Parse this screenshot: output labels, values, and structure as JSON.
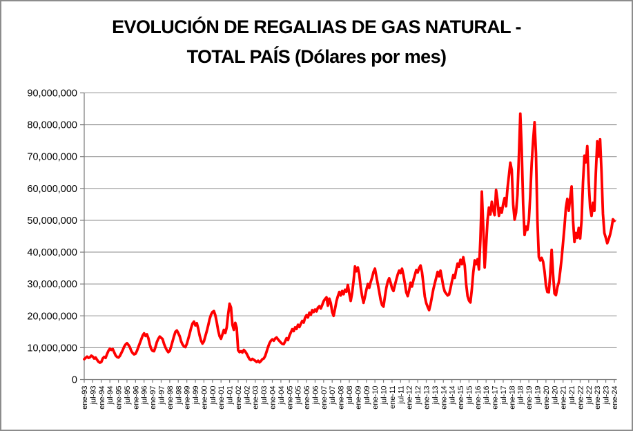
{
  "title": {
    "line1": "EVOLUCIÓN DE REGALIAS DE GAS NATURAL -",
    "line2": "TOTAL PAÍS (Dólares por mes)"
  },
  "colors": {
    "line": "#ff0000",
    "grid": "#8a8a8a",
    "axis": "#7a7a7a",
    "text": "#000000",
    "border": "#8c8c8c",
    "background": "#ffffff"
  },
  "chart_data": {
    "type": "line",
    "title": "EVOLUCIÓN DE REGALIAS DE GAS NATURAL - TOTAL PAÍS (Dólares por mes)",
    "xlabel": "",
    "ylabel": "",
    "legend": "none",
    "grid": "horizontal",
    "y_axis": {
      "min": 0,
      "max": 90000000,
      "step": 10000000
    },
    "y_tick_labels": [
      "0",
      "10,000,000",
      "20,000,000",
      "30,000,000",
      "40,000,000",
      "50,000,000",
      "60,000,000",
      "70,000,000",
      "80,000,000",
      "90,000,000"
    ],
    "x_tick_labels": [
      "ene-93",
      "jul-93",
      "ene-94",
      "jul-94",
      "ene-95",
      "jul-95",
      "ene-96",
      "jul-96",
      "ene-97",
      "jul-97",
      "ene-98",
      "jul-98",
      "ene-99",
      "jul-99",
      "ene-00",
      "jul-00",
      "ene-01",
      "jul-01",
      "ene-02",
      "jul-02",
      "ene-03",
      "jul-03",
      "ene-04",
      "jul-04",
      "ene-05",
      "jul-05",
      "ene-06",
      "jul-06",
      "ene-07",
      "jul-07",
      "ene-08",
      "jul-08",
      "ene-09",
      "jul-09",
      "ene-10",
      "jul-10",
      "ene-11",
      "jul-11",
      "ene-12",
      "jul-12",
      "ene-13",
      "jul-13",
      "ene-14",
      "jul-14",
      "ene-15",
      "jul-15",
      "ene-16",
      "jul-16",
      "ene-17",
      "jul-17",
      "ene-18",
      "jul-18",
      "ene-19",
      "jul-19",
      "ene-20",
      "jul-20",
      "ene-21",
      "jul-21",
      "ene-22",
      "jul-22",
      "ene-23",
      "jul-23",
      "ene-24"
    ],
    "x_start": "ene-93",
    "x_end": "ene-24",
    "n_points": 373,
    "values_unit": "millions of dollars per month (estimated from plot)",
    "values_millions": [
      6.4,
      6.8,
      7.2,
      6.8,
      7.0,
      7.5,
      7.2,
      6.6,
      6.9,
      6.2,
      5.6,
      5.3,
      5.5,
      6.6,
      7.1,
      6.8,
      8.0,
      9.0,
      9.7,
      9.3,
      9.6,
      8.6,
      7.6,
      7.1,
      6.9,
      7.4,
      8.3,
      9.2,
      10.3,
      11.0,
      11.4,
      10.9,
      10.2,
      9.0,
      8.3,
      7.9,
      8.1,
      9.0,
      10.2,
      11.4,
      12.6,
      13.8,
      14.5,
      13.7,
      14.2,
      13.0,
      11.0,
      9.6,
      9.0,
      8.9,
      10.2,
      11.8,
      12.8,
      13.5,
      13.1,
      12.7,
      11.2,
      10.1,
      9.2,
      8.6,
      9.0,
      10.4,
      12.0,
      13.6,
      15.0,
      15.4,
      14.6,
      13.6,
      12.0,
      11.0,
      10.4,
      10.2,
      11.2,
      12.8,
      14.4,
      16.2,
      17.6,
      18.2,
      17.0,
      17.7,
      16.0,
      13.8,
      12.2,
      11.3,
      12.0,
      13.6,
      15.2,
      17.0,
      19.0,
      20.4,
      21.2,
      21.5,
      20.2,
      18.0,
      15.4,
      13.6,
      12.8,
      14.2,
      15.6,
      14.6,
      16.4,
      20.5,
      23.8,
      22.6,
      17.2,
      15.6,
      17.8,
      16.2,
      9.2,
      8.6,
      8.9,
      8.5,
      9.3,
      8.8,
      8.1,
      7.2,
      6.4,
      6.1,
      6.5,
      6.2,
      5.9,
      5.5,
      5.9,
      5.4,
      5.8,
      6.4,
      6.6,
      7.4,
      8.8,
      10.2,
      11.4,
      12.2,
      12.6,
      12.2,
      12.9,
      13.2,
      12.6,
      12.1,
      11.6,
      11.2,
      11.1,
      12.0,
      13.0,
      12.4,
      13.8,
      14.8,
      15.8,
      15.2,
      16.4,
      15.9,
      17.2,
      16.5,
      17.5,
      18.4,
      17.9,
      19.4,
      20.2,
      19.5,
      21.0,
      20.3,
      21.8,
      21.2,
      22.0,
      21.4,
      22.6,
      23.0,
      22.3,
      23.4,
      24.6,
      25.3,
      25.8,
      23.2,
      25.4,
      24.0,
      21.2,
      20.0,
      22.2,
      24.6,
      26.2,
      27.5,
      26.4,
      27.8,
      26.8,
      28.2,
      27.6,
      29.7,
      27.0,
      24.7,
      27.2,
      31.0,
      35.5,
      34.0,
      35.2,
      33.0,
      29.0,
      26.2,
      24.1,
      26.0,
      28.2,
      30.0,
      28.8,
      30.6,
      32.0,
      33.8,
      34.8,
      32.4,
      30.0,
      27.6,
      25.0,
      23.4,
      22.9,
      26.0,
      28.8,
      30.8,
      31.8,
      30.4,
      28.6,
      27.8,
      29.6,
      31.4,
      33.0,
      34.2,
      33.4,
      34.8,
      32.8,
      30.2,
      27.4,
      26.2,
      28.0,
      30.4,
      29.2,
      31.2,
      32.8,
      34.4,
      33.6,
      35.0,
      35.8,
      33.8,
      30.0,
      26.0,
      24.0,
      22.8,
      21.8,
      23.6,
      26.0,
      28.4,
      30.2,
      32.0,
      33.8,
      32.4,
      34.2,
      31.8,
      29.2,
      27.6,
      27.0,
      26.4,
      26.7,
      28.6,
      30.8,
      32.8,
      31.9,
      34.4,
      36.4,
      35.4,
      37.6,
      36.2,
      38.4,
      35.8,
      30.0,
      26.2,
      24.8,
      24.2,
      28.4,
      33.6,
      37.4,
      36.2,
      37.8,
      34.6,
      44.0,
      59.0,
      48.0,
      35.2,
      42.0,
      50.0,
      54.0,
      51.8,
      55.8,
      53.2,
      51.6,
      59.5,
      56.2,
      51.4,
      53.8,
      52.4,
      55.2,
      57.0,
      54.4,
      60.0,
      64.0,
      68.1,
      65.8,
      55.0,
      50.2,
      52.4,
      58.0,
      70.0,
      83.5,
      72.0,
      55.0,
      45.4,
      48.0,
      47.0,
      50.0,
      58.0,
      68.0,
      75.0,
      80.8,
      71.0,
      50.0,
      38.5,
      37.4,
      38.2,
      37.0,
      34.0,
      29.5,
      27.5,
      27.4,
      33.0,
      40.7,
      33.0,
      27.0,
      26.5,
      29.0,
      30.5,
      34.0,
      38.0,
      43.0,
      48.0,
      54.0,
      56.7,
      53.0,
      57.0,
      60.6,
      50.0,
      43.2,
      46.0,
      44.5,
      47.6,
      44.3,
      50.0,
      62.0,
      70.3,
      68.2,
      73.3,
      62.0,
      54.0,
      51.4,
      55.5,
      53.0,
      65.0,
      74.8,
      70.0,
      75.4,
      65.0,
      52.0,
      46.0,
      44.5,
      42.8,
      44.0,
      45.5,
      47.5,
      50.3,
      49.8
    ]
  }
}
